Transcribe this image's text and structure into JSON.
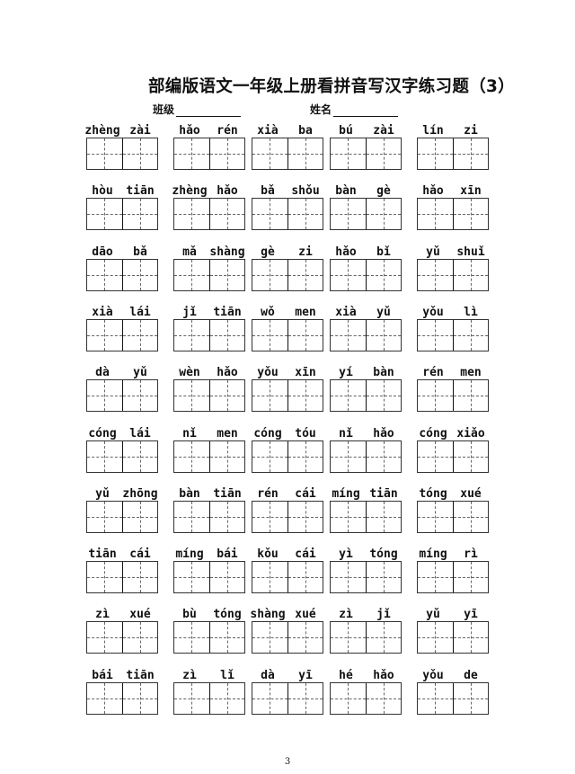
{
  "title": "部编版语文一年级上册看拼音写汉字练习题（3）",
  "class_label": "班级",
  "name_label": "姓名",
  "rows": [
    [
      [
        "zhèng",
        "zài"
      ],
      [
        "hǎo",
        "rén"
      ],
      [
        "xià",
        "ba"
      ],
      [
        "bú",
        "zài"
      ],
      [
        "lín",
        "zi"
      ]
    ],
    [
      [
        "hòu",
        "tiān"
      ],
      [
        "zhèng",
        "hǎo"
      ],
      [
        "bǎ",
        "shǒu"
      ],
      [
        "bàn",
        "gè"
      ],
      [
        "hǎo",
        "xīn"
      ]
    ],
    [
      [
        "dāo",
        "bǎ"
      ],
      [
        "mǎ",
        "shàng"
      ],
      [
        "gè",
        "zi"
      ],
      [
        "hǎo",
        "bǐ"
      ],
      [
        "yǔ",
        "shuǐ"
      ]
    ],
    [
      [
        "xià",
        "lái"
      ],
      [
        "jǐ",
        "tiān"
      ],
      [
        "wǒ",
        "men"
      ],
      [
        "xià",
        "yǔ"
      ],
      [
        "yǒu",
        "lì"
      ]
    ],
    [
      [
        "dà",
        "yǔ"
      ],
      [
        "wèn",
        "hǎo"
      ],
      [
        "yǒu",
        "xīn"
      ],
      [
        "yí",
        "bàn"
      ],
      [
        "rén",
        "men"
      ]
    ],
    [
      [
        "cóng",
        "lái"
      ],
      [
        "nǐ",
        "men"
      ],
      [
        "cóng",
        "tóu"
      ],
      [
        "nǐ",
        "hǎo"
      ],
      [
        "cóng",
        "xiǎo"
      ]
    ],
    [
      [
        "yǔ",
        "zhōng"
      ],
      [
        "bàn",
        "tiān"
      ],
      [
        "rén",
        "cái"
      ],
      [
        "míng",
        "tiān"
      ],
      [
        "tóng",
        "xué"
      ]
    ],
    [
      [
        "tiān",
        "cái"
      ],
      [
        "míng",
        "bái"
      ],
      [
        "kǒu",
        "cái"
      ],
      [
        "yì",
        "tóng"
      ],
      [
        "míng",
        "rì"
      ]
    ],
    [
      [
        "zì",
        "xué"
      ],
      [
        "bù",
        "tóng"
      ],
      [
        "shàng",
        "xué"
      ],
      [
        "zì",
        "jǐ"
      ],
      [
        "yǔ",
        "yī"
      ]
    ],
    [
      [
        "bái",
        "tiān"
      ],
      [
        "zì",
        "lǐ"
      ],
      [
        "dà",
        "yī"
      ],
      [
        "hé",
        "hǎo"
      ],
      [
        "yǒu",
        "de"
      ]
    ]
  ],
  "page_number": "3"
}
